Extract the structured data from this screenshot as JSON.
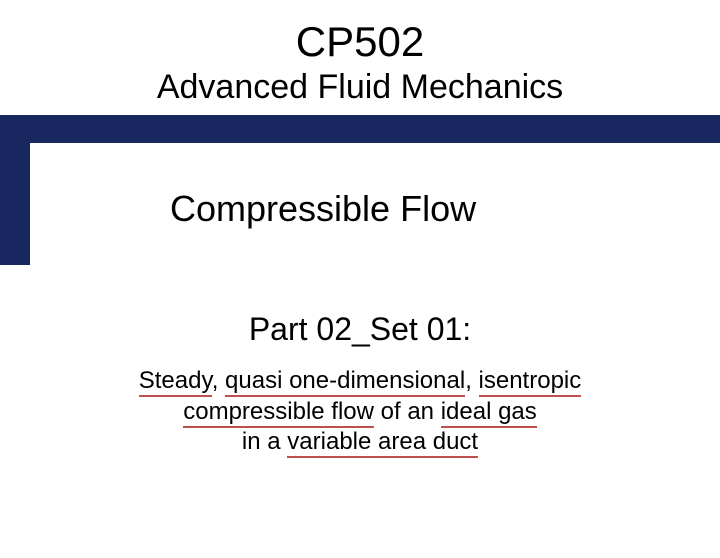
{
  "colors": {
    "banner_bg": "#18275f",
    "underline": "#c0504d",
    "text": "#000000",
    "page_bg": "#ffffff"
  },
  "typography": {
    "course_code_fontsize": 42,
    "course_title_fontsize": 34,
    "banner_fontsize": 36,
    "part_fontsize": 32,
    "desc_fontsize": 24,
    "font_family": "Arial"
  },
  "course_code": "CP502",
  "course_title": "Advanced Fluid Mechanics",
  "banner_title": "Compressible Flow",
  "part_label": "Part 02_Set 01:",
  "desc": {
    "w1": "Steady",
    "c1": ", ",
    "w2": "quasi one-dimensional",
    "c2": ", ",
    "w3": "isentropic",
    "w4": "compressible flow",
    "mid": " of an ",
    "w5": "ideal gas",
    "line3a": "in a ",
    "w6": "variable area duct"
  }
}
